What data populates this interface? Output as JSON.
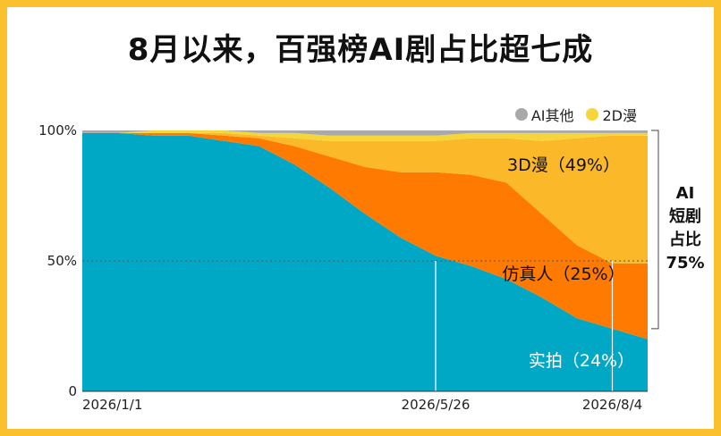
{
  "title": "8月以来，百强榜AI剧占比超七成",
  "legend": [
    {
      "name": "AI其他",
      "color": "#a9a9a9"
    },
    {
      "name": "2D漫",
      "color": "#f5d63a"
    }
  ],
  "side_label": {
    "line1": "AI",
    "line2": "短剧",
    "line3": "占比",
    "line4": "75%"
  },
  "chart_data": {
    "type": "area",
    "stacked": true,
    "x_ticks": [
      "2026/1/1",
      "2026/5/26",
      "2026/8/4"
    ],
    "y_ticks": [
      "0",
      "50%",
      "100%"
    ],
    "ylim": [
      0,
      100
    ],
    "reference_line": 50,
    "x": [
      "2026/1/1",
      "2026/1/15",
      "2026/2/1",
      "2026/2/15",
      "2026/3/1",
      "2026/3/15",
      "2026/4/1",
      "2026/4/15",
      "2026/5/1",
      "2026/5/15",
      "2026/5/26",
      "2026/6/10",
      "2026/6/25",
      "2026/7/10",
      "2026/7/25",
      "2026/8/4",
      "2026/8/10"
    ],
    "series": [
      {
        "name": "实拍",
        "label": "实拍（24%）",
        "color": "#00a8c6",
        "values": [
          99,
          99,
          98,
          98,
          96,
          94,
          87,
          78,
          68,
          59,
          52,
          48,
          43,
          36,
          28,
          24,
          20
        ]
      },
      {
        "name": "仿真人",
        "label": "仿真人（25%）",
        "color": "#ff7a00",
        "values": [
          0,
          0,
          1,
          1,
          2,
          3,
          7,
          12,
          18,
          25,
          32,
          35,
          37,
          32,
          28,
          25,
          29
        ]
      },
      {
        "name": "3D漫",
        "label": "3D漫（49%）",
        "color": "#fbb829",
        "values": [
          0,
          0,
          0,
          0,
          1,
          1,
          3,
          6,
          10,
          12,
          12,
          14,
          17,
          28,
          41,
          49,
          49
        ]
      },
      {
        "name": "2D漫",
        "color": "#f5d63a",
        "values": [
          0,
          0,
          1,
          1,
          1,
          1,
          2,
          2,
          2,
          2,
          2,
          2,
          2,
          3,
          2,
          1,
          1
        ]
      },
      {
        "name": "AI其他",
        "color": "#a9a9a9",
        "values": [
          1,
          1,
          0,
          0,
          0,
          1,
          1,
          2,
          2,
          2,
          2,
          1,
          1,
          1,
          1,
          1,
          1
        ]
      }
    ]
  }
}
